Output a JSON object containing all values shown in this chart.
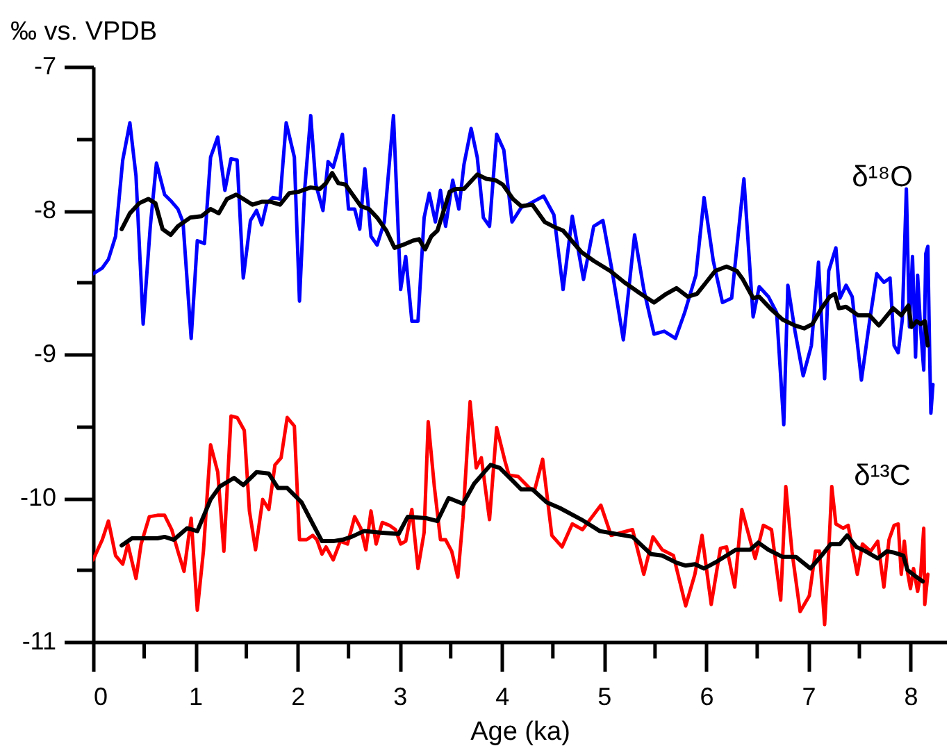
{
  "chart_data": {
    "type": "line",
    "xlabel": "Age (ka)",
    "ylabel": "‰ vs. VPDB",
    "xlim": [
      0,
      8.35
    ],
    "ylim": [
      -11,
      -7
    ],
    "xticks": [
      0,
      {
        "value": 0.5,
        "label": null
      },
      1,
      {
        "value": 1.5,
        "label": null
      },
      2,
      {
        "value": 2.5,
        "label": null
      },
      3,
      {
        "value": 3.5,
        "label": null
      },
      4,
      {
        "value": 4.5,
        "label": null
      },
      5,
      {
        "value": 5.5,
        "label": null
      },
      6,
      {
        "value": 6.5,
        "label": null
      },
      7,
      {
        "value": 7.5,
        "label": null
      },
      8
    ],
    "yticks": [
      -11,
      {
        "value": -10.5,
        "label": null
      },
      -10,
      {
        "value": -9.5,
        "label": null
      },
      -9,
      {
        "value": -8.5,
        "label": null
      },
      -8,
      {
        "value": -7.5,
        "label": null
      },
      -7
    ],
    "annotations": [
      "δ¹⁸O",
      "δ¹³C"
    ],
    "series": [
      {
        "color": "#0000ff",
        "x": [
          0,
          0.09,
          0.15,
          0.22,
          0.29,
          0.36,
          0.42,
          0.49,
          0.56,
          0.62,
          0.7,
          0.77,
          0.83,
          0.88,
          0.96,
          1.02,
          1.09,
          1.15,
          1.22,
          1.29,
          1.35,
          1.41,
          1.47,
          1.54,
          1.6,
          1.65,
          1.7,
          1.76,
          1.83,
          1.89,
          1.97,
          2.02,
          2.07,
          2.13,
          2.18,
          2.25,
          2.3,
          2.35,
          2.39,
          2.44,
          2.5,
          2.56,
          2.61,
          2.66,
          2.72,
          2.78,
          2.85,
          2.94,
          3.01,
          3.06,
          3.12,
          3.18,
          3.24,
          3.29,
          3.35,
          3.4,
          3.45,
          3.52,
          3.58,
          3.63,
          3.7,
          3.76,
          3.82,
          3.88,
          3.95,
          4.02,
          4.1,
          4.19,
          4.28,
          4.41,
          4.51,
          4.6,
          4.69,
          4.8,
          4.9,
          4.99,
          5.08,
          5.19,
          5.3,
          5.39,
          5.49,
          5.59,
          5.7,
          5.79,
          5.9,
          5.98,
          6.07,
          6.16,
          6.25,
          6.37,
          6.46,
          6.52,
          6.61,
          6.69,
          6.76,
          6.8,
          6.87,
          6.95,
          7.03,
          7.1,
          7.16,
          7.2,
          7.27,
          7.31,
          7.37,
          7.43,
          7.52,
          7.6,
          7.67,
          7.74,
          7.8,
          7.84,
          7.88,
          7.92,
          7.96,
          7.99,
          8.02,
          8.05,
          8.07,
          8.1,
          8.13,
          8.15,
          8.17,
          8.19,
          8.2,
          8.22
        ],
        "values": [
          -8.44,
          -8.4,
          -8.34,
          -8.18,
          -7.65,
          -7.39,
          -7.76,
          -8.79,
          -8.11,
          -7.67,
          -7.89,
          -7.94,
          -7.99,
          -8.08,
          -8.89,
          -8.21,
          -8.23,
          -7.63,
          -7.49,
          -7.86,
          -7.64,
          -7.65,
          -8.47,
          -8.07,
          -8.0,
          -8.1,
          -7.95,
          -7.91,
          -7.92,
          -7.39,
          -7.63,
          -8.63,
          -7.86,
          -7.34,
          -7.82,
          -8.0,
          -7.66,
          -7.7,
          -7.6,
          -7.47,
          -7.99,
          -7.99,
          -8.13,
          -7.71,
          -8.18,
          -8.24,
          -8.08,
          -7.34,
          -8.55,
          -8.32,
          -8.77,
          -8.77,
          -8.05,
          -7.88,
          -8.08,
          -7.86,
          -8.11,
          -7.79,
          -7.99,
          -7.68,
          -7.43,
          -7.63,
          -8.05,
          -8.11,
          -7.47,
          -7.58,
          -8.08,
          -7.98,
          -7.95,
          -7.9,
          -8.03,
          -8.55,
          -8.04,
          -8.48,
          -8.11,
          -8.07,
          -8.42,
          -8.9,
          -8.17,
          -8.55,
          -8.86,
          -8.84,
          -8.89,
          -8.71,
          -8.45,
          -7.91,
          -8.35,
          -8.64,
          -8.61,
          -7.78,
          -8.74,
          -8.53,
          -8.6,
          -8.71,
          -9.49,
          -8.52,
          -8.84,
          -9.15,
          -8.94,
          -8.36,
          -9.17,
          -8.42,
          -8.26,
          -8.61,
          -8.52,
          -8.6,
          -9.18,
          -8.77,
          -8.44,
          -8.5,
          -8.47,
          -8.94,
          -8.99,
          -8.76,
          -7.85,
          -8.81,
          -8.32,
          -9.02,
          -8.45,
          -8.83,
          -9.11,
          -8.3,
          -8.25,
          -9.08,
          -9.41,
          -9.21
        ]
      },
      {
        "color": "#000000",
        "x": [
          0.28,
          0.36,
          0.45,
          0.54,
          0.61,
          0.68,
          0.76,
          0.83,
          0.95,
          1.06,
          1.15,
          1.23,
          1.31,
          1.4,
          1.47,
          1.56,
          1.65,
          1.74,
          1.83,
          1.92,
          2.01,
          2.13,
          2.22,
          2.28,
          2.34,
          2.4,
          2.47,
          2.54,
          2.62,
          2.7,
          2.78,
          2.87,
          2.95,
          3.03,
          3.13,
          3.19,
          3.25,
          3.31,
          3.37,
          3.49,
          3.55,
          3.63,
          3.76,
          3.85,
          3.94,
          4.01,
          4.11,
          4.19,
          4.3,
          4.42,
          4.53,
          4.6,
          4.78,
          4.9,
          5.06,
          5.2,
          5.36,
          5.49,
          5.61,
          5.71,
          5.82,
          5.91,
          6.0,
          6.09,
          6.2,
          6.3,
          6.36,
          6.46,
          6.52,
          6.64,
          6.75,
          6.87,
          6.96,
          7.04,
          7.13,
          7.21,
          7.26,
          7.3,
          7.37,
          7.49,
          7.6,
          7.69,
          7.76,
          7.83,
          7.91,
          7.98,
          8.01,
          8.06,
          8.1,
          8.14,
          8.17
        ],
        "values": [
          -8.13,
          -8.02,
          -7.95,
          -7.92,
          -7.95,
          -8.13,
          -8.17,
          -8.11,
          -8.05,
          -8.04,
          -7.99,
          -8.02,
          -7.92,
          -7.89,
          -7.92,
          -7.96,
          -7.94,
          -7.94,
          -7.96,
          -7.88,
          -7.87,
          -7.84,
          -7.85,
          -7.81,
          -7.74,
          -7.81,
          -7.82,
          -7.89,
          -7.97,
          -7.99,
          -8.05,
          -8.14,
          -8.26,
          -8.24,
          -8.21,
          -8.2,
          -8.27,
          -8.18,
          -8.14,
          -7.87,
          -7.85,
          -7.85,
          -7.75,
          -7.78,
          -7.79,
          -7.82,
          -7.92,
          -7.97,
          -7.96,
          -8.08,
          -8.12,
          -8.14,
          -8.29,
          -8.35,
          -8.42,
          -8.5,
          -8.58,
          -8.64,
          -8.58,
          -8.54,
          -8.6,
          -8.58,
          -8.5,
          -8.42,
          -8.39,
          -8.42,
          -8.48,
          -8.61,
          -8.6,
          -8.69,
          -8.76,
          -8.8,
          -8.82,
          -8.79,
          -8.68,
          -8.6,
          -8.58,
          -8.68,
          -8.67,
          -8.73,
          -8.73,
          -8.8,
          -8.74,
          -8.68,
          -8.73,
          -8.66,
          -8.81,
          -8.77,
          -8.79,
          -8.77,
          -8.94
        ]
      },
      {
        "color": "#ff0000",
        "x": [
          0,
          0.09,
          0.15,
          0.22,
          0.29,
          0.34,
          0.42,
          0.47,
          0.55,
          0.63,
          0.7,
          0.77,
          0.83,
          0.89,
          0.96,
          1.02,
          1.08,
          1.15,
          1.22,
          1.28,
          1.35,
          1.41,
          1.48,
          1.53,
          1.59,
          1.66,
          1.72,
          1.78,
          1.84,
          1.9,
          1.97,
          2.02,
          2.09,
          2.15,
          2.19,
          2.24,
          2.28,
          2.35,
          2.42,
          2.49,
          2.56,
          2.62,
          2.67,
          2.72,
          2.77,
          2.83,
          2.9,
          2.96,
          3.01,
          3.06,
          3.12,
          3.18,
          3.24,
          3.28,
          3.34,
          3.4,
          3.45,
          3.51,
          3.57,
          3.62,
          3.69,
          3.75,
          3.8,
          3.88,
          3.95,
          4.03,
          4.07,
          4.16,
          4.27,
          4.32,
          4.4,
          4.49,
          4.59,
          4.69,
          4.79,
          4.97,
          5.07,
          5.17,
          5.28,
          5.39,
          5.48,
          5.57,
          5.68,
          5.8,
          5.89,
          5.96,
          6.05,
          6.14,
          6.2,
          6.28,
          6.35,
          6.43,
          6.48,
          6.56,
          6.64,
          6.73,
          6.78,
          6.84,
          6.92,
          7.01,
          7.07,
          7.11,
          7.16,
          7.2,
          7.23,
          7.27,
          7.34,
          7.39,
          7.48,
          7.53,
          7.61,
          7.68,
          7.74,
          7.79,
          7.84,
          7.88,
          7.91,
          7.94,
          7.97,
          8.0,
          8.03,
          8.07,
          8.1,
          8.13,
          8.14,
          8.17
        ],
        "values": [
          -10.43,
          -10.29,
          -10.16,
          -10.4,
          -10.46,
          -10.32,
          -10.56,
          -10.32,
          -10.13,
          -10.12,
          -10.12,
          -10.22,
          -10.37,
          -10.51,
          -10.14,
          -10.78,
          -10.37,
          -9.63,
          -9.82,
          -10.37,
          -9.43,
          -9.44,
          -9.53,
          -10.09,
          -10.36,
          -10.01,
          -10.08,
          -9.77,
          -9.72,
          -9.44,
          -9.5,
          -10.29,
          -10.29,
          -10.26,
          -10.29,
          -10.39,
          -10.34,
          -10.43,
          -10.3,
          -10.32,
          -10.13,
          -10.21,
          -10.36,
          -10.09,
          -10.32,
          -10.17,
          -10.19,
          -10.22,
          -10.32,
          -10.3,
          -10.08,
          -10.49,
          -10.24,
          -9.47,
          -9.92,
          -10.29,
          -10.29,
          -10.37,
          -10.55,
          -10.14,
          -9.33,
          -9.79,
          -9.72,
          -10.15,
          -9.51,
          -9.74,
          -9.84,
          -9.85,
          -9.93,
          -9.95,
          -9.73,
          -10.26,
          -10.34,
          -10.18,
          -10.22,
          -10.05,
          -10.26,
          -10.24,
          -10.22,
          -10.53,
          -10.27,
          -10.36,
          -10.4,
          -10.75,
          -10.53,
          -10.26,
          -10.74,
          -10.35,
          -10.34,
          -10.62,
          -10.08,
          -10.29,
          -10.42,
          -10.19,
          -10.22,
          -10.71,
          -9.92,
          -10.37,
          -10.79,
          -10.68,
          -10.37,
          -10.37,
          -10.88,
          -10.37,
          -9.92,
          -10.18,
          -10.21,
          -10.19,
          -10.53,
          -10.32,
          -10.37,
          -10.3,
          -10.62,
          -10.29,
          -10.19,
          -10.18,
          -10.53,
          -10.3,
          -10.51,
          -10.63,
          -10.49,
          -10.65,
          -10.53,
          -10.21,
          -10.74,
          -10.53
        ]
      },
      {
        "color": "#000000",
        "x": [
          0.28,
          0.38,
          0.49,
          0.63,
          0.7,
          0.79,
          0.92,
          1.02,
          1.15,
          1.24,
          1.38,
          1.47,
          1.6,
          1.72,
          1.81,
          1.9,
          2.04,
          2.15,
          2.24,
          2.35,
          2.44,
          2.53,
          2.65,
          2.81,
          2.99,
          3.08,
          3.26,
          3.37,
          3.48,
          3.62,
          3.73,
          3.89,
          3.98,
          4.12,
          4.19,
          4.3,
          4.44,
          4.57,
          4.78,
          4.96,
          5.12,
          5.28,
          5.46,
          5.57,
          5.71,
          5.8,
          5.89,
          5.98,
          6.11,
          6.29,
          6.43,
          6.51,
          6.61,
          6.75,
          6.88,
          7.02,
          7.13,
          7.22,
          7.31,
          7.38,
          7.47,
          7.56,
          7.68,
          7.77,
          7.84,
          7.93,
          7.97,
          8.06,
          8.12
        ],
        "values": [
          -10.33,
          -10.28,
          -10.28,
          -10.28,
          -10.27,
          -10.29,
          -10.21,
          -10.23,
          -10.01,
          -9.92,
          -9.86,
          -9.91,
          -9.82,
          -9.83,
          -9.93,
          -9.93,
          -10.03,
          -10.18,
          -10.3,
          -10.3,
          -10.29,
          -10.27,
          -10.23,
          -10.24,
          -10.25,
          -10.13,
          -10.14,
          -10.16,
          -10.0,
          -10.04,
          -9.9,
          -9.77,
          -9.79,
          -9.89,
          -9.94,
          -9.94,
          -10.03,
          -10.07,
          -10.15,
          -10.23,
          -10.25,
          -10.27,
          -10.39,
          -10.4,
          -10.45,
          -10.47,
          -10.46,
          -10.49,
          -10.44,
          -10.36,
          -10.36,
          -10.31,
          -10.36,
          -10.41,
          -10.41,
          -10.49,
          -10.4,
          -10.32,
          -10.32,
          -10.26,
          -10.34,
          -10.37,
          -10.42,
          -10.37,
          -10.38,
          -10.4,
          -10.5,
          -10.55,
          -10.58
        ]
      }
    ]
  }
}
